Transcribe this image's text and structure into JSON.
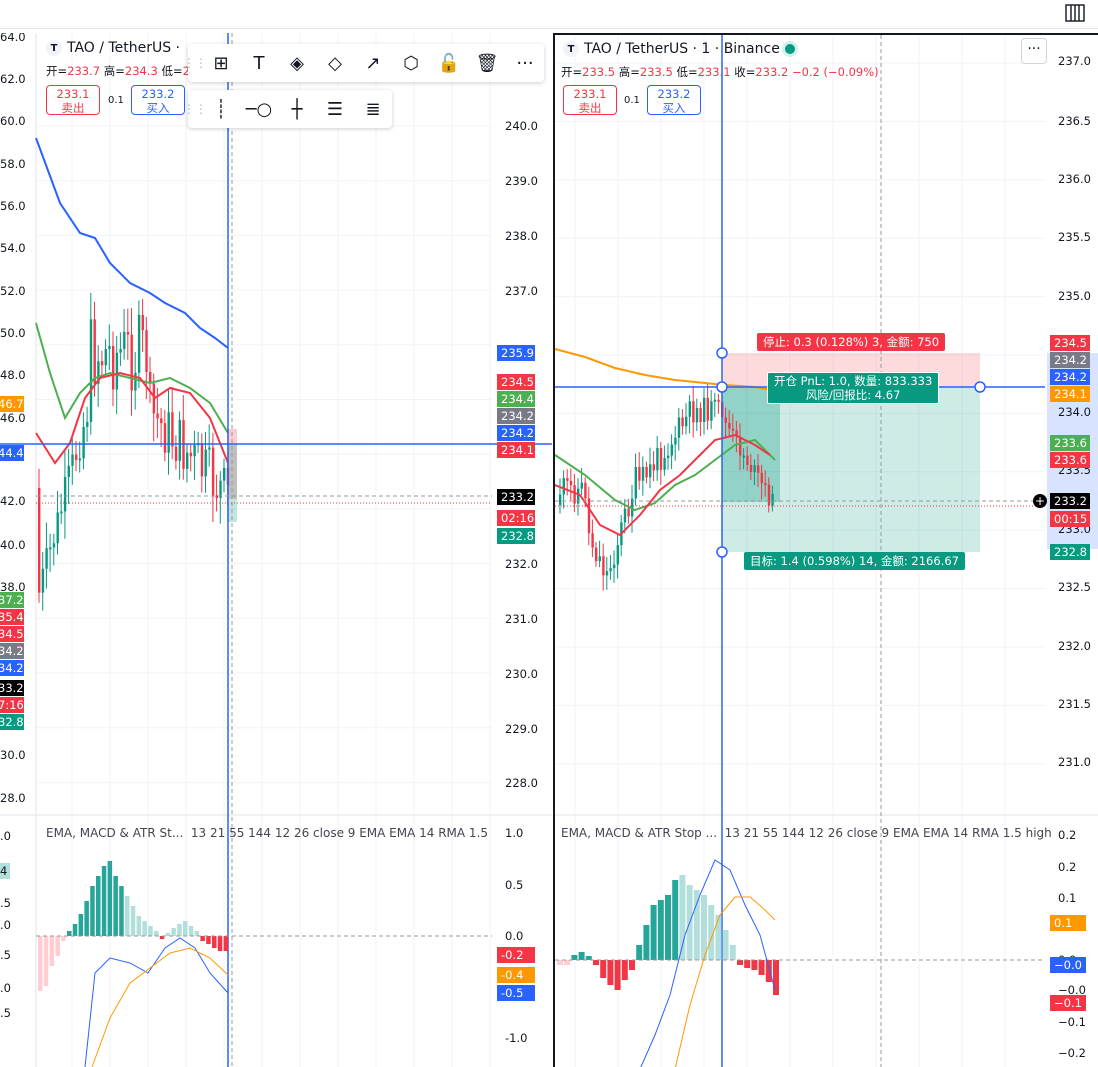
{
  "colors": {
    "up": "#089981",
    "down": "#f23645",
    "blue": "#2962ff",
    "orange": "#ff9800",
    "green_ma": "#4caf50",
    "red_ma": "#f23645",
    "grid": "#f0f3fa"
  },
  "layout_icon": "grid-layout-icon",
  "left": {
    "symbol": "TAO / TetherUS ·",
    "ohlc": {
      "o_k": "开=",
      "o": "233.7",
      "h_k": "高=",
      "h": "234.3",
      "l_k": "低=",
      "l": "2"
    },
    "sell": {
      "price": "233.1",
      "label": "卖出"
    },
    "buy": {
      "price": "233.2",
      "label": "买入"
    },
    "spread": "0.1",
    "price_axis": [
      "240.0",
      "239.0",
      "238.0",
      "237.0",
      "232.0",
      "231.0",
      "230.0",
      "229.0",
      "228.0"
    ],
    "left_axis": [
      "64.0",
      "62.0",
      "60.0",
      "58.0",
      "56.0",
      "54.0",
      "52.0",
      "50.0",
      "48.0",
      "46.0",
      "42.0",
      "40.0",
      "38.0",
      "30.0",
      "28.0"
    ],
    "tags": [
      {
        "text": "235.9",
        "color": "#2962ff"
      },
      {
        "text": "234.5",
        "color": "#f23645"
      },
      {
        "text": "234.4",
        "color": "#4caf50"
      },
      {
        "text": "234.2",
        "color": "#787b86"
      },
      {
        "text": "234.2",
        "color": "#2962ff"
      },
      {
        "text": "234.1",
        "color": "#f23645"
      },
      {
        "text": "233.2",
        "color": "#000000"
      },
      {
        "text": "02:16",
        "color": "#f23645"
      },
      {
        "text": "232.8",
        "color": "#089981"
      }
    ],
    "left_tags": [
      {
        "text": "46.7",
        "color": "#ff9800"
      },
      {
        "text": "44.4",
        "color": "#2962ff"
      },
      {
        "text": "37.2",
        "color": "#4caf50"
      },
      {
        "text": "35.4",
        "color": "#f23645"
      },
      {
        "text": "34.5",
        "color": "#f23645"
      },
      {
        "text": "34.2",
        "color": "#787b86"
      },
      {
        "text": "34.2",
        "color": "#2962ff"
      },
      {
        "text": "33.2",
        "color": "#000000"
      },
      {
        "text": "7:16",
        "color": "#f23645"
      },
      {
        "text": "32.8",
        "color": "#089981"
      }
    ],
    "indicator": {
      "title": "EMA, MACD & ATR St...",
      "params": "13 21 55 144 12 26 close 9 EMA EMA 14 RMA 1.5",
      "axis": [
        "1.0",
        "0.5",
        "0.0",
        "-1.0"
      ],
      "left_axis": [
        ".0",
        ".5",
        ".0",
        ".5",
        ".0",
        ".5"
      ],
      "tags": [
        {
          "text": "-0.2",
          "color": "#f23645"
        },
        {
          "text": "-0.4",
          "color": "#ff9800"
        },
        {
          "text": "-0.5",
          "color": "#2962ff"
        }
      ],
      "left_tag": "4"
    }
  },
  "right": {
    "symbol": "TAO / TetherUS · 1 · Binance",
    "ohlc": {
      "o_k": "开=",
      "o": "233.5",
      "h_k": "高=",
      "h": "233.5",
      "l_k": "低=",
      "l": "233.1",
      "c_k": "收=",
      "c": "233.2",
      "chg": "−0.2 (−0.09%)"
    },
    "sell": {
      "price": "233.1",
      "label": "卖出"
    },
    "buy": {
      "price": "233.2",
      "label": "买入"
    },
    "spread": "0.1",
    "price_axis": [
      "237.0",
      "236.5",
      "236.0",
      "235.5",
      "235.0",
      "234.0",
      "233.5",
      "233.0",
      "232.5",
      "232.0",
      "231.5",
      "231.0"
    ],
    "tags": [
      {
        "text": "234.5",
        "color": "#f23645"
      },
      {
        "text": "234.2",
        "color": "#787b86"
      },
      {
        "text": "234.2",
        "color": "#2962ff"
      },
      {
        "text": "234.1",
        "color": "#ff9800"
      },
      {
        "text": "233.6",
        "color": "#4caf50"
      },
      {
        "text": "233.6",
        "color": "#f23645"
      },
      {
        "text": "233.2",
        "color": "#000000"
      },
      {
        "text": "00:15",
        "color": "#f23645"
      },
      {
        "text": "232.8",
        "color": "#089981"
      }
    ],
    "position": {
      "stop": "停止: 0.3 (0.128%) 3, 金额: 750",
      "open_line1": "开仓 PnL: 1.0, 数量: 833.333",
      "open_line2": "风险/回报比: 4.67",
      "target": "目标: 1.4 (0.598%) 14, 金额: 2166.67"
    },
    "indicator": {
      "title": "EMA, MACD & ATR Stop ...",
      "params": "13 21 55 144 12 26 close 9 EMA EMA 14 RMA 1.5 high",
      "axis": [
        "0.2",
        "0.2",
        "0.1",
        "0.0",
        "−0.0",
        "−0.1",
        "−0.2"
      ],
      "tags": [
        {
          "text": "0.1",
          "color": "#ff9800"
        },
        {
          "text": "−0.0",
          "color": "#2962ff"
        },
        {
          "text": "−0.1",
          "color": "#f23645"
        }
      ]
    }
  },
  "toolbar1": [
    "layout-plus-icon",
    "text-tool-icon",
    "fill-color-icon",
    "line-color-icon",
    "chart-settings-icon",
    "hexagon-icon",
    "lock-icon",
    "trash-icon",
    "more-icon"
  ],
  "toolbar2": [
    "vertical-line-icon",
    "horizontal-ray-icon",
    "crosshair-icon",
    "s-lines-icon",
    "l-lines-icon"
  ]
}
